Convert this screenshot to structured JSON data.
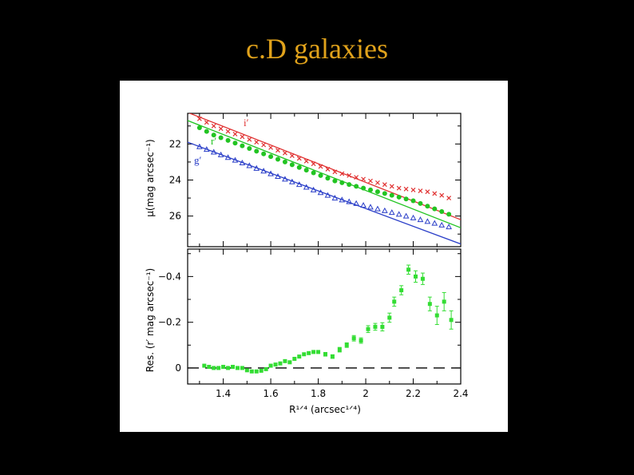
{
  "slide": {
    "title": "c.D galaxies"
  },
  "colors": {
    "title": "#e0a21b",
    "r": "#e03030",
    "rprime": "#22c422",
    "g": "#2a3ec8",
    "residual": "#33dd33",
    "frame": "#000000"
  },
  "chart_data": [
    {
      "type": "line",
      "panel": "top",
      "ylabel": "μ(mag arcsec⁻¹)",
      "xlim": [
        1.25,
        2.4
      ],
      "ylim": [
        20.3,
        27.7
      ],
      "y_inverted": true,
      "y_ticks": [
        22,
        24,
        26
      ],
      "band_labels": [
        "i′",
        "r′",
        "g′"
      ],
      "series": [
        {
          "name": "i′",
          "color": "#e03030",
          "marker": "x",
          "x": [
            1.3,
            1.33,
            1.36,
            1.39,
            1.42,
            1.45,
            1.48,
            1.51,
            1.54,
            1.57,
            1.6,
            1.63,
            1.66,
            1.69,
            1.72,
            1.75,
            1.78,
            1.81,
            1.84,
            1.87,
            1.9,
            1.93,
            1.96,
            1.99,
            2.02,
            2.05,
            2.08,
            2.11,
            2.14,
            2.17,
            2.2,
            2.23,
            2.26,
            2.29,
            2.32,
            2.35
          ],
          "y": [
            20.6,
            20.8,
            21.0,
            21.15,
            21.3,
            21.45,
            21.6,
            21.75,
            21.9,
            22.05,
            22.2,
            22.35,
            22.5,
            22.65,
            22.8,
            22.95,
            23.1,
            23.25,
            23.4,
            23.55,
            23.65,
            23.75,
            23.85,
            23.95,
            24.05,
            24.15,
            24.25,
            24.35,
            24.45,
            24.5,
            24.55,
            24.6,
            24.65,
            24.75,
            24.85,
            25.0
          ],
          "fit": {
            "x": [
              1.25,
              2.4
            ],
            "y": [
              20.25,
              26.2
            ]
          }
        },
        {
          "name": "r′",
          "color": "#22c422",
          "marker": "dot",
          "x": [
            1.3,
            1.33,
            1.36,
            1.39,
            1.42,
            1.45,
            1.48,
            1.51,
            1.54,
            1.57,
            1.6,
            1.63,
            1.66,
            1.69,
            1.72,
            1.75,
            1.78,
            1.81,
            1.84,
            1.87,
            1.9,
            1.93,
            1.96,
            1.99,
            2.02,
            2.05,
            2.08,
            2.11,
            2.14,
            2.17,
            2.2,
            2.23,
            2.26,
            2.29,
            2.32,
            2.35
          ],
          "y": [
            21.1,
            21.3,
            21.5,
            21.65,
            21.8,
            21.95,
            22.1,
            22.25,
            22.4,
            22.55,
            22.7,
            22.85,
            23.0,
            23.15,
            23.3,
            23.45,
            23.6,
            23.75,
            23.9,
            24.05,
            24.15,
            24.25,
            24.35,
            24.45,
            24.55,
            24.65,
            24.75,
            24.85,
            24.95,
            25.05,
            25.15,
            25.3,
            25.45,
            25.6,
            25.75,
            25.9
          ],
          "fit": {
            "x": [
              1.25,
              2.4
            ],
            "y": [
              20.7,
              26.65
            ]
          }
        },
        {
          "name": "g′",
          "color": "#2a3ec8",
          "marker": "triangle",
          "x": [
            1.3,
            1.33,
            1.36,
            1.39,
            1.42,
            1.45,
            1.48,
            1.51,
            1.54,
            1.57,
            1.6,
            1.63,
            1.66,
            1.69,
            1.72,
            1.75,
            1.78,
            1.81,
            1.84,
            1.87,
            1.9,
            1.93,
            1.96,
            1.99,
            2.02,
            2.05,
            2.08,
            2.11,
            2.14,
            2.17,
            2.2,
            2.23,
            2.26,
            2.29,
            2.32,
            2.35
          ],
          "y": [
            22.15,
            22.3,
            22.45,
            22.6,
            22.75,
            22.9,
            23.05,
            23.2,
            23.35,
            23.5,
            23.65,
            23.8,
            23.95,
            24.1,
            24.25,
            24.4,
            24.55,
            24.7,
            24.85,
            25.0,
            25.1,
            25.2,
            25.3,
            25.4,
            25.5,
            25.6,
            25.7,
            25.8,
            25.9,
            26.0,
            26.1,
            26.2,
            26.3,
            26.4,
            26.5,
            26.6
          ],
          "fit": {
            "x": [
              1.25,
              2.4
            ],
            "y": [
              21.9,
              27.55
            ]
          }
        }
      ]
    },
    {
      "type": "scatter",
      "panel": "bottom",
      "xlabel": "R¹ᐟ⁴ (arcsec¹ᐟ⁴)",
      "ylabel": "Res. (r′ mag arcsec⁻¹)",
      "xlim": [
        1.25,
        2.4
      ],
      "ylim": [
        0.07,
        -0.52
      ],
      "y_inverted": true,
      "x_ticks": [
        "1.4",
        "1.6",
        "1.8",
        "2",
        "2.2",
        "2.4"
      ],
      "x_tick_values": [
        1.4,
        1.6,
        1.8,
        2.0,
        2.2,
        2.4
      ],
      "y_ticks": [
        "−0.4",
        "−0.2",
        "0"
      ],
      "y_tick_values": [
        -0.4,
        -0.2,
        0
      ],
      "zero_line": true,
      "series": [
        {
          "name": "",
          "color": "#33dd33",
          "x": [
            1.32,
            1.34,
            1.36,
            1.38,
            1.4,
            1.42,
            1.44,
            1.46,
            1.48,
            1.5,
            1.52,
            1.54,
            1.56,
            1.58,
            1.6,
            1.62,
            1.64,
            1.66,
            1.68,
            1.7,
            1.72,
            1.74,
            1.76,
            1.78,
            1.8,
            1.83,
            1.86,
            1.89,
            1.92,
            1.95,
            1.98,
            2.01,
            2.04,
            2.07,
            2.1,
            2.12,
            2.15,
            2.18,
            2.21,
            2.24,
            2.27,
            2.3,
            2.33,
            2.36
          ],
          "y": [
            -0.01,
            -0.005,
            0.0,
            0.0,
            -0.005,
            0.0,
            -0.005,
            0.0,
            0.0,
            0.01,
            0.015,
            0.015,
            0.012,
            0.005,
            -0.01,
            -0.015,
            -0.02,
            -0.03,
            -0.025,
            -0.04,
            -0.05,
            -0.06,
            -0.065,
            -0.07,
            -0.07,
            -0.06,
            -0.05,
            -0.08,
            -0.1,
            -0.13,
            -0.12,
            -0.17,
            -0.18,
            -0.18,
            -0.22,
            -0.29,
            -0.34,
            -0.43,
            -0.4,
            -0.39,
            -0.28,
            -0.23,
            -0.29,
            -0.21
          ],
          "err": [
            0.005,
            0.005,
            0.005,
            0.005,
            0.005,
            0.005,
            0.005,
            0.005,
            0.005,
            0.005,
            0.005,
            0.005,
            0.005,
            0.005,
            0.005,
            0.005,
            0.005,
            0.005,
            0.005,
            0.005,
            0.005,
            0.005,
            0.005,
            0.005,
            0.005,
            0.008,
            0.008,
            0.01,
            0.01,
            0.012,
            0.012,
            0.015,
            0.015,
            0.018,
            0.02,
            0.02,
            0.02,
            0.02,
            0.025,
            0.025,
            0.03,
            0.04,
            0.04,
            0.04
          ]
        }
      ]
    }
  ]
}
